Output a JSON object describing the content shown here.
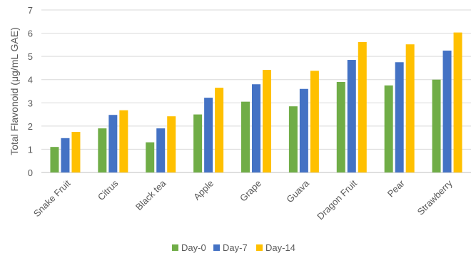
{
  "chart_data": {
    "type": "bar",
    "title": "",
    "xlabel": "",
    "ylabel": "Total Flavonoid (μg/mL GAE)",
    "ylim": [
      0,
      7
    ],
    "yticks": [
      0,
      1,
      2,
      3,
      4,
      5,
      6,
      7
    ],
    "grid": true,
    "legend_position": "bottom",
    "categories": [
      "Snake Fruit",
      "Citrus",
      "Black tea",
      "Apple",
      "Grape",
      "Guava",
      "Dragon Fruit",
      "Pear",
      "Strawberry"
    ],
    "series": [
      {
        "name": "Day-0",
        "color": "#70ad47",
        "values": [
          1.1,
          1.9,
          1.3,
          2.5,
          3.05,
          2.85,
          3.9,
          3.75,
          4.0
        ]
      },
      {
        "name": "Day-7",
        "color": "#4472c4",
        "values": [
          1.48,
          2.48,
          1.9,
          3.22,
          3.8,
          3.6,
          4.85,
          4.75,
          5.25
        ]
      },
      {
        "name": "Day-14",
        "color": "#ffc000",
        "values": [
          1.75,
          2.68,
          2.42,
          3.65,
          4.42,
          4.38,
          5.62,
          5.52,
          6.03
        ]
      }
    ]
  }
}
